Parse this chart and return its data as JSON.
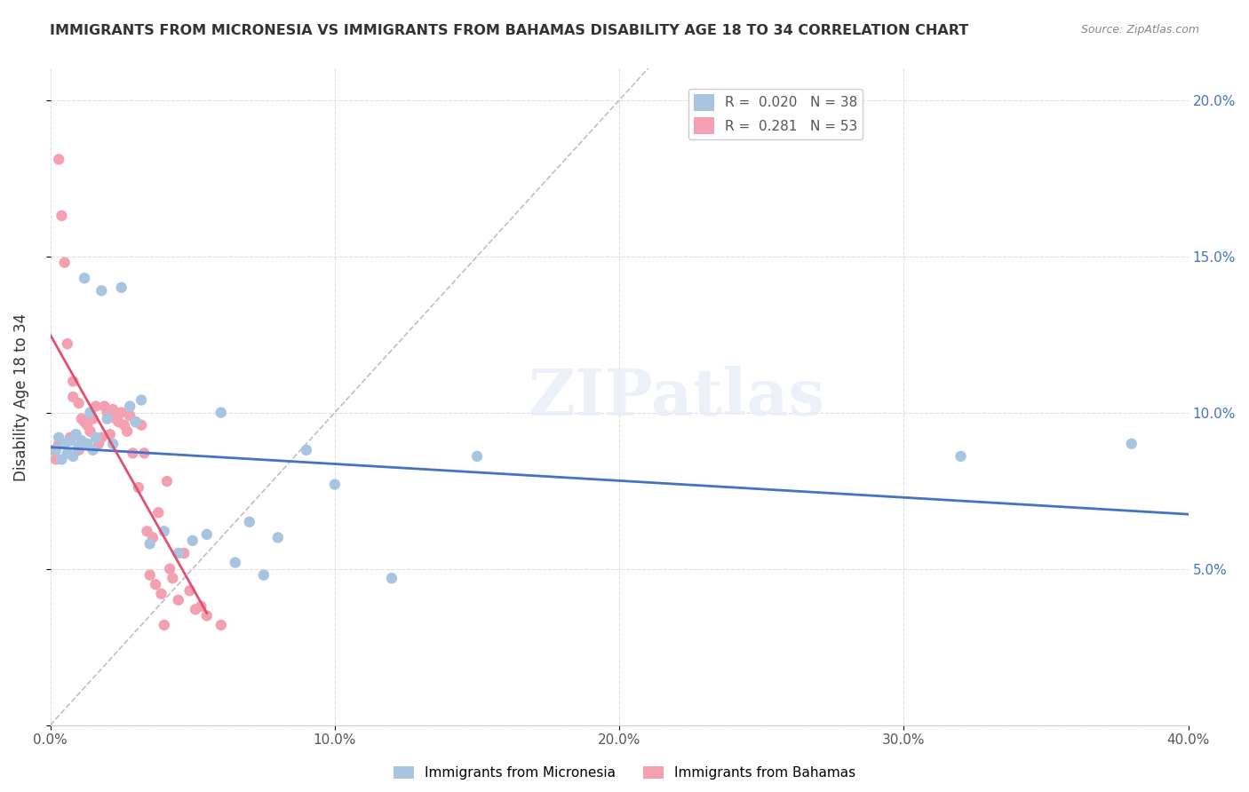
{
  "title": "IMMIGRANTS FROM MICRONESIA VS IMMIGRANTS FROM BAHAMAS DISABILITY AGE 18 TO 34 CORRELATION CHART",
  "source": "Source: ZipAtlas.com",
  "xlabel_bottom": "",
  "ylabel": "Disability Age 18 to 34",
  "x_min": 0.0,
  "x_max": 0.4,
  "y_min": 0.0,
  "y_max": 0.21,
  "x_ticks": [
    0.0,
    0.1,
    0.2,
    0.3,
    0.4
  ],
  "x_tick_labels": [
    "0.0%",
    "10.0%",
    "20.0%",
    "30.0%",
    "40.0%"
  ],
  "y_ticks": [
    0.0,
    0.05,
    0.1,
    0.15,
    0.2
  ],
  "y_tick_labels": [
    "",
    "5.0%",
    "10.0%",
    "15.0%",
    "20.0%"
  ],
  "legend_r1": "R =  0.020",
  "legend_n1": "N = 38",
  "legend_r2": "R =  0.281",
  "legend_n2": "N = 53",
  "color_micronesia": "#a8c4e0",
  "color_bahamas": "#f4a0b0",
  "color_line_micronesia": "#4472c4",
  "color_line_bahamas": "#e05070",
  "color_diagonal": "#c8b8c8",
  "watermark": "ZIPatlas",
  "micronesia_x": [
    0.002,
    0.003,
    0.004,
    0.005,
    0.006,
    0.007,
    0.008,
    0.009,
    0.01,
    0.011,
    0.012,
    0.013,
    0.014,
    0.015,
    0.016,
    0.018,
    0.02,
    0.022,
    0.025,
    0.028,
    0.03,
    0.032,
    0.035,
    0.04,
    0.045,
    0.05,
    0.055,
    0.06,
    0.065,
    0.07,
    0.075,
    0.08,
    0.09,
    0.1,
    0.12,
    0.15,
    0.32,
    0.38
  ],
  "micronesia_y": [
    0.088,
    0.092,
    0.085,
    0.09,
    0.087,
    0.091,
    0.086,
    0.093,
    0.089,
    0.091,
    0.143,
    0.09,
    0.1,
    0.088,
    0.092,
    0.139,
    0.098,
    0.09,
    0.14,
    0.102,
    0.097,
    0.104,
    0.058,
    0.062,
    0.055,
    0.059,
    0.061,
    0.1,
    0.052,
    0.065,
    0.048,
    0.06,
    0.088,
    0.077,
    0.047,
    0.086,
    0.086,
    0.09
  ],
  "bahamas_x": [
    0.001,
    0.002,
    0.003,
    0.003,
    0.004,
    0.005,
    0.006,
    0.007,
    0.008,
    0.008,
    0.009,
    0.01,
    0.01,
    0.011,
    0.012,
    0.013,
    0.014,
    0.015,
    0.016,
    0.017,
    0.018,
    0.019,
    0.02,
    0.021,
    0.022,
    0.023,
    0.024,
    0.025,
    0.026,
    0.027,
    0.028,
    0.029,
    0.03,
    0.031,
    0.032,
    0.033,
    0.034,
    0.035,
    0.036,
    0.037,
    0.038,
    0.039,
    0.04,
    0.041,
    0.042,
    0.043,
    0.045,
    0.047,
    0.049,
    0.051,
    0.053,
    0.055,
    0.06
  ],
  "bahamas_y": [
    0.088,
    0.085,
    0.181,
    0.09,
    0.163,
    0.148,
    0.122,
    0.092,
    0.105,
    0.11,
    0.093,
    0.103,
    0.088,
    0.098,
    0.097,
    0.096,
    0.094,
    0.098,
    0.102,
    0.09,
    0.092,
    0.102,
    0.1,
    0.093,
    0.101,
    0.098,
    0.097,
    0.1,
    0.096,
    0.094,
    0.099,
    0.087,
    0.097,
    0.076,
    0.096,
    0.087,
    0.062,
    0.048,
    0.06,
    0.045,
    0.068,
    0.042,
    0.032,
    0.078,
    0.05,
    0.047,
    0.04,
    0.055,
    0.043,
    0.037,
    0.038,
    0.035,
    0.032
  ]
}
